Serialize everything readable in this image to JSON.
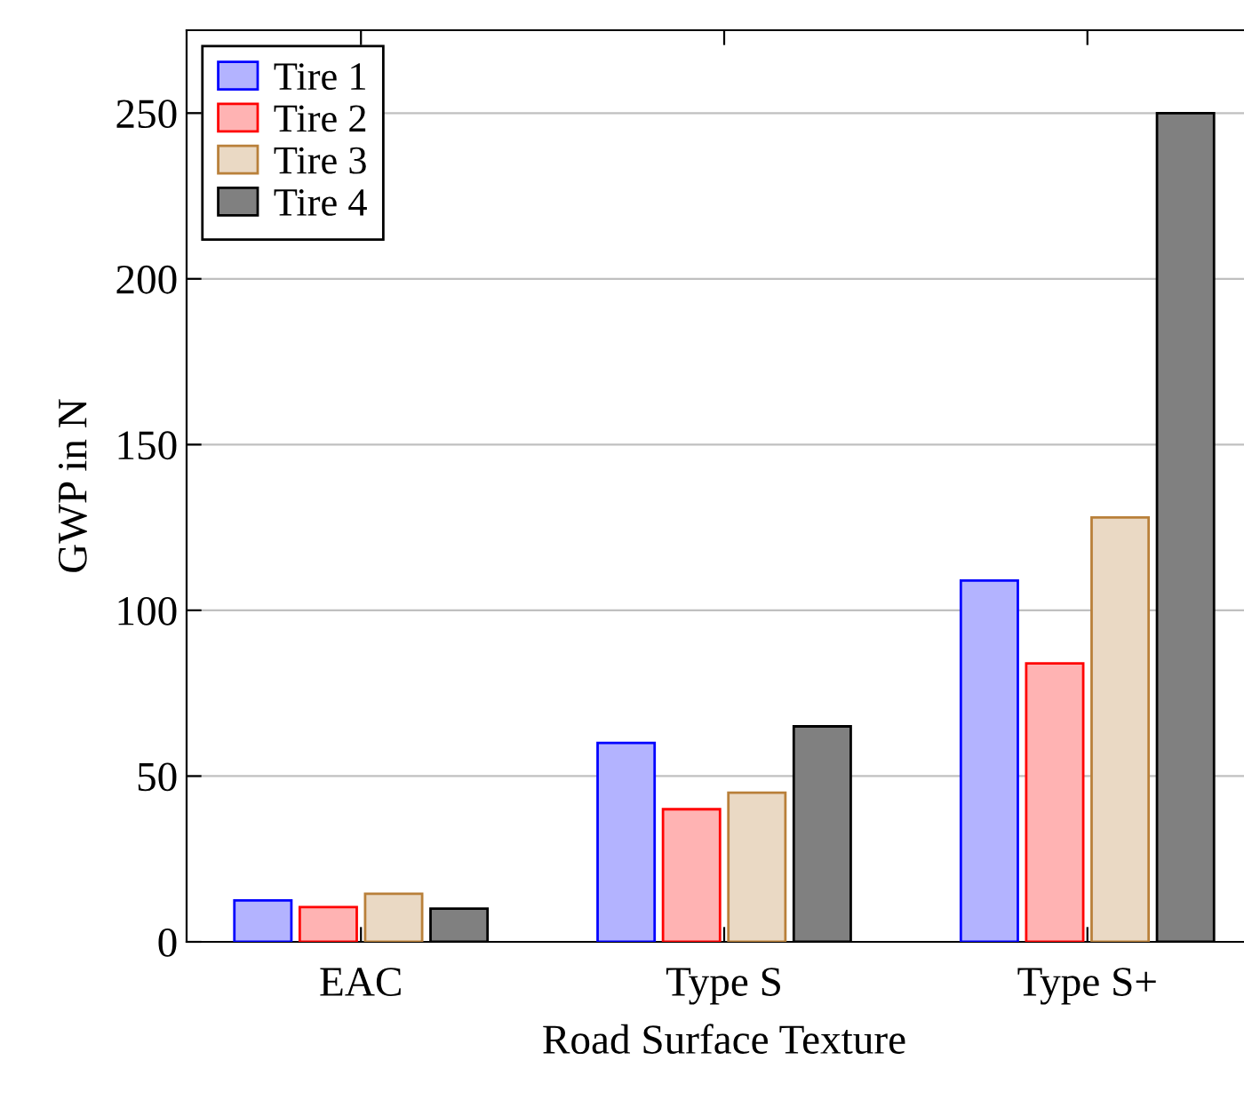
{
  "chart_data": {
    "type": "bar",
    "xlabel": "Road Surface Texture",
    "ylabel": "GWP in N",
    "categories": [
      "EAC",
      "Type S",
      "Type S+"
    ],
    "series": [
      {
        "name": "Tire 1",
        "color": "#b3b3ff",
        "values": [
          12.5,
          60,
          109
        ]
      },
      {
        "name": "Tire 2",
        "color": "#ffb3b3",
        "values": [
          10.5,
          40,
          84
        ]
      },
      {
        "name": "Tire 3",
        "color": "#ead9c4",
        "values": [
          14.5,
          45,
          128
        ]
      },
      {
        "name": "Tire 4",
        "color": "#808080",
        "values": [
          10,
          65,
          250
        ]
      }
    ],
    "ylim": [
      0,
      275
    ],
    "yticks": [
      0,
      50,
      100,
      150,
      200,
      250
    ],
    "grid": "y",
    "legend": "top left"
  }
}
